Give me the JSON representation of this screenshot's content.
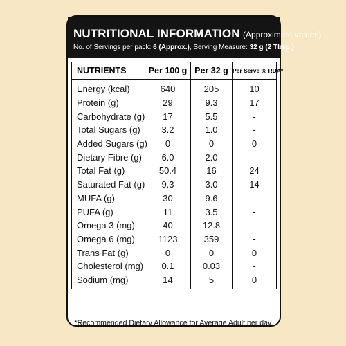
{
  "label": {
    "title": "NUTRITIONAL INFORMATION",
    "title_note": "(Approximate values)",
    "servings_prefix": "No. of Servings per pack: ",
    "servings_count": "6 (Approx.)",
    "serving_measure_prefix": ", Serving Measure: ",
    "serving_measure": "32 g (2 Tbsp.)"
  },
  "table": {
    "headers": [
      "NUTRIENTS",
      "Per 100 g",
      "Per 32 g",
      "Per Serve % RDA*"
    ],
    "rows": [
      {
        "name": "Energy (kcal)",
        "per100": "640",
        "per32": "205",
        "rda": "10"
      },
      {
        "name": "Protein (g)",
        "per100": "29",
        "per32": "9.3",
        "rda": "17"
      },
      {
        "name": "Carbohydrate (g)",
        "per100": "17",
        "per32": "5.5",
        "rda": "-"
      },
      {
        "name": "Total Sugars (g)",
        "per100": "3.2",
        "per32": "1.0",
        "rda": "-"
      },
      {
        "name": "Added Sugars (g)",
        "per100": "0",
        "per32": "0",
        "rda": "0"
      },
      {
        "name": "Dietary Fibre (g)",
        "per100": "6.0",
        "per32": "2.0",
        "rda": "-"
      },
      {
        "name": "Total Fat (g)",
        "per100": "50.4",
        "per32": "16",
        "rda": "24"
      },
      {
        "name": "Saturated Fat (g)",
        "per100": "9.3",
        "per32": "3.0",
        "rda": "14"
      },
      {
        "name": "MUFA (g)",
        "per100": "30",
        "per32": "9.6",
        "rda": "-"
      },
      {
        "name": "PUFA (g)",
        "per100": "11",
        "per32": "3.5",
        "rda": "-"
      },
      {
        "name": "Omega 3 (mg)",
        "per100": "40",
        "per32": "12.8",
        "rda": "-"
      },
      {
        "name": "Omega 6 (mg)",
        "per100": "1123",
        "per32": "359",
        "rda": "-"
      },
      {
        "name": "Trans Fat (g)",
        "per100": "0",
        "per32": "0",
        "rda": "0"
      },
      {
        "name": "Cholesterol (mg)",
        "per100": "0.1",
        "per32": "0.03",
        "rda": "-"
      },
      {
        "name": "Sodium (mg)",
        "per100": "14",
        "per32": "5",
        "rda": "0"
      }
    ]
  },
  "footnote": "*Recommended Dietary Allowance for Average Adult per day."
}
